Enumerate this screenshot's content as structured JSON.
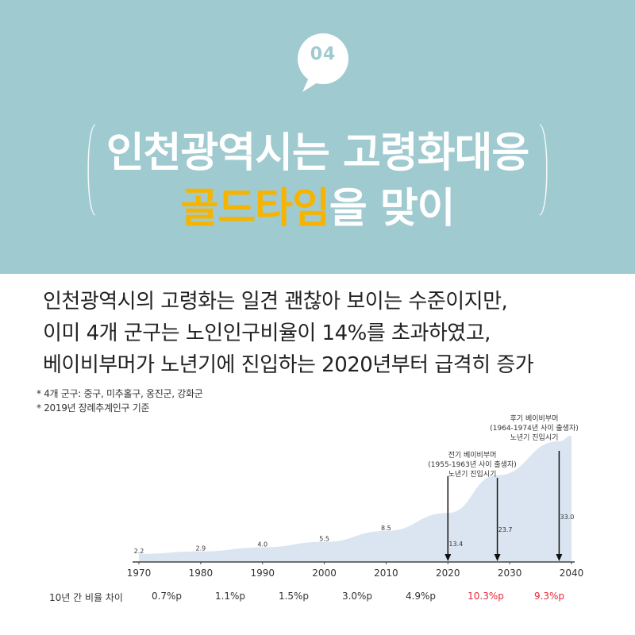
{
  "header": {
    "badge_number": "04",
    "title_line1": "인천광역시는 고령화대응",
    "title_line2_highlight": "골드타임",
    "title_line2_rest": "을 맞이"
  },
  "summary": [
    "인천광역시의 고령화는 일견 괜찮아 보이는 수준이지만,",
    "이미 4개 군구는 노인인구비율이 14%를 초과하였고,",
    "베이비부머가 노년기에 진입하는 2020년부터 급격히 증가"
  ],
  "notes": [
    "* 4개 군구: 중구, 미추홀구, 옹진군, 강화군",
    "* 2019년 장례추계인구 기준"
  ],
  "chart_data": {
    "type": "area",
    "x": [
      1970,
      1980,
      1990,
      2000,
      2010,
      2020,
      2030,
      2040
    ],
    "points": [
      {
        "x": 1970,
        "y": 2.2,
        "label": "2.2"
      },
      {
        "x": 1980,
        "y": 2.9,
        "label": "2.9"
      },
      {
        "x": 1990,
        "y": 4.0,
        "label": "4.0"
      },
      {
        "x": 2000,
        "y": 5.5,
        "label": "5.5"
      },
      {
        "x": 2010,
        "y": 8.5,
        "label": "8.5"
      },
      {
        "x": 2020,
        "y": 13.4,
        "label": "13.4"
      },
      {
        "x": 2028,
        "y": 23.7,
        "label": "23.7"
      },
      {
        "x": 2038,
        "y": 33.0,
        "label": "33.0"
      },
      {
        "x": 2040,
        "y": 34.5,
        "label": ""
      }
    ],
    "xlim": [
      1970,
      2040
    ],
    "ylim": [
      0,
      36
    ],
    "fill_color": "#dbe5f1",
    "axis_color": "#444444",
    "annotations": [
      {
        "x": 2020,
        "lines": [
          "전기 베이비부머",
          "(1955-1963년 사이 출생자)",
          "노년기 진입시기"
        ]
      },
      {
        "x": 2038,
        "lines": [
          "후기 베이비부머",
          "(1964-1974년 사이 출생자)",
          "노년기 진입시기"
        ]
      }
    ],
    "arrows_x": [
      2020,
      2028,
      2038
    ]
  },
  "diff": {
    "label": "10년 간 비율 차이",
    "values": [
      {
        "text": "0.7%p",
        "highlight": false
      },
      {
        "text": "1.1%p",
        "highlight": false
      },
      {
        "text": "1.5%p",
        "highlight": false
      },
      {
        "text": "3.0%p",
        "highlight": false
      },
      {
        "text": "4.9%p",
        "highlight": false
      },
      {
        "text": "10.3%p",
        "highlight": true
      },
      {
        "text": "9.3%p",
        "highlight": true
      }
    ]
  },
  "colors": {
    "header_bg": "#9fcad0",
    "highlight_gold": "#f6b400",
    "diff_red": "#e5283a"
  }
}
